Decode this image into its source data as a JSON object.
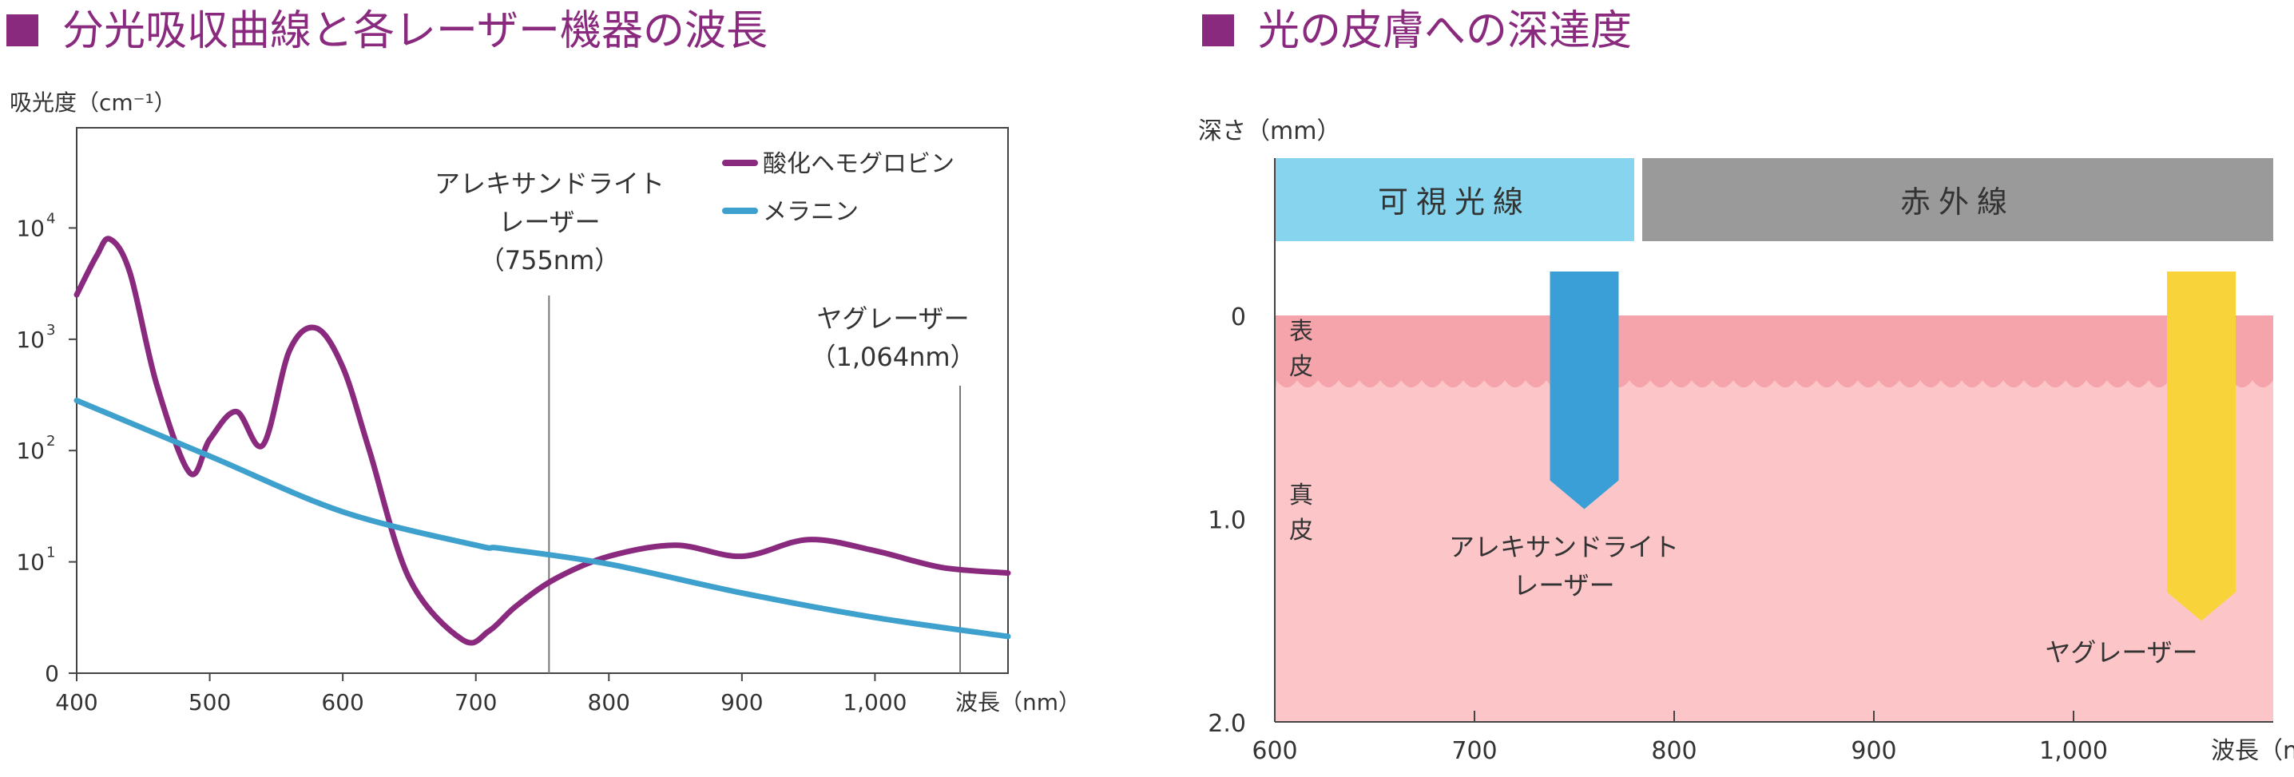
{
  "left_title": "分光吸収曲線と各レーザー機器の波長",
  "right_title": "光の皮膚への深達度",
  "colors": {
    "title": "#8a2a7e",
    "hemoglobin": "#8a2a7e",
    "melanin": "#3ea0cc",
    "visible_band": "#86d4ee",
    "infrared_band": "#9a9a9a",
    "epidermis": "#f5a4ac",
    "dermis": "#fcc6c9",
    "alex_arrow": "#3a9fd6",
    "yag_arrow": "#f8d43a"
  },
  "chart_data": [
    {
      "type": "line",
      "title": "分光吸収曲線と各レーザー機器の波長",
      "ylabel": "吸光度（cm⁻¹）",
      "xlabel": "波長（nm）",
      "xlim": [
        400,
        1100
      ],
      "ylim_log10": [
        0,
        4.9
      ],
      "y_scale": "log",
      "x_ticks": [
        400,
        500,
        600,
        700,
        800,
        900,
        1000
      ],
      "x_tick_labels": [
        "400",
        "500",
        "600",
        "700",
        "800",
        "900",
        "1,000"
      ],
      "y_ticks": [
        {
          "label_base": "0",
          "label_exp": "",
          "log10": 0
        },
        {
          "label_base": "10",
          "label_exp": "1",
          "log10": 1
        },
        {
          "label_base": "10",
          "label_exp": "2",
          "log10": 2
        },
        {
          "label_base": "10",
          "label_exp": "3",
          "log10": 3
        },
        {
          "label_base": "10",
          "label_exp": "4",
          "log10": 4
        }
      ],
      "legend": {
        "position": "top-right"
      },
      "series": [
        {
          "name": "酸化ヘモグロビン",
          "color": "#8a2a7e",
          "x": [
            400,
            415,
            425,
            440,
            460,
            485,
            500,
            520,
            540,
            560,
            580,
            600,
            620,
            650,
            690,
            710,
            730,
            760,
            800,
            850,
            900,
            950,
            1000,
            1050,
            1100
          ],
          "log10_y": [
            3.4,
            3.75,
            3.9,
            3.6,
            2.6,
            1.8,
            2.1,
            2.35,
            2.05,
            2.9,
            3.1,
            2.75,
            2.0,
            0.85,
            0.3,
            0.38,
            0.6,
            0.85,
            1.05,
            1.15,
            1.05,
            1.2,
            1.1,
            0.95,
            0.9
          ]
        },
        {
          "name": "メラニン",
          "color": "#3ea0cc",
          "x": [
            400,
            500,
            600,
            700,
            720,
            800,
            900,
            1000,
            1100
          ],
          "log10_y": [
            2.45,
            1.95,
            1.45,
            1.15,
            1.12,
            0.98,
            0.72,
            0.5,
            0.33
          ]
        }
      ],
      "annotations": [
        {
          "label_lines": [
            "アレキサンドライト",
            "レーザー",
            "（755nm）"
          ],
          "x": 755
        },
        {
          "label_lines": [
            "ヤグレーザー",
            "（1,064nm）"
          ],
          "x": 1064
        }
      ]
    },
    {
      "type": "diagram",
      "title": "光の皮膚への深達度",
      "ylabel": "深さ（mm）",
      "xlabel": "波長（nm）",
      "xlim": [
        600,
        1100
      ],
      "depth_range_mm": [
        0,
        2.0
      ],
      "x_ticks": [
        600,
        700,
        800,
        900,
        1000
      ],
      "x_tick_labels": [
        "600",
        "700",
        "800",
        "900",
        "1,000"
      ],
      "y_ticks": [
        {
          "label": "0",
          "depth": 0
        },
        {
          "label": "1.0",
          "depth": 1.0
        },
        {
          "label": "2.0",
          "depth": 2.0
        }
      ],
      "bands": [
        {
          "label": "可視光線",
          "from": 600,
          "to": 780
        },
        {
          "label": "赤外線",
          "from": 780,
          "to": 1100
        }
      ],
      "layers": [
        {
          "label": "表皮",
          "depth_from": 0,
          "depth_to": 0.35
        },
        {
          "label": "真皮",
          "depth_from": 0.35,
          "depth_to": 2.0
        }
      ],
      "lasers": [
        {
          "label_lines": [
            "アレキサンドライト",
            "レーザー"
          ],
          "wavelength": 755,
          "penetration_mm": 1.0
        },
        {
          "label_lines": [
            "ヤグレーザー"
          ],
          "wavelength": 1064,
          "penetration_mm": 1.55
        }
      ]
    }
  ]
}
